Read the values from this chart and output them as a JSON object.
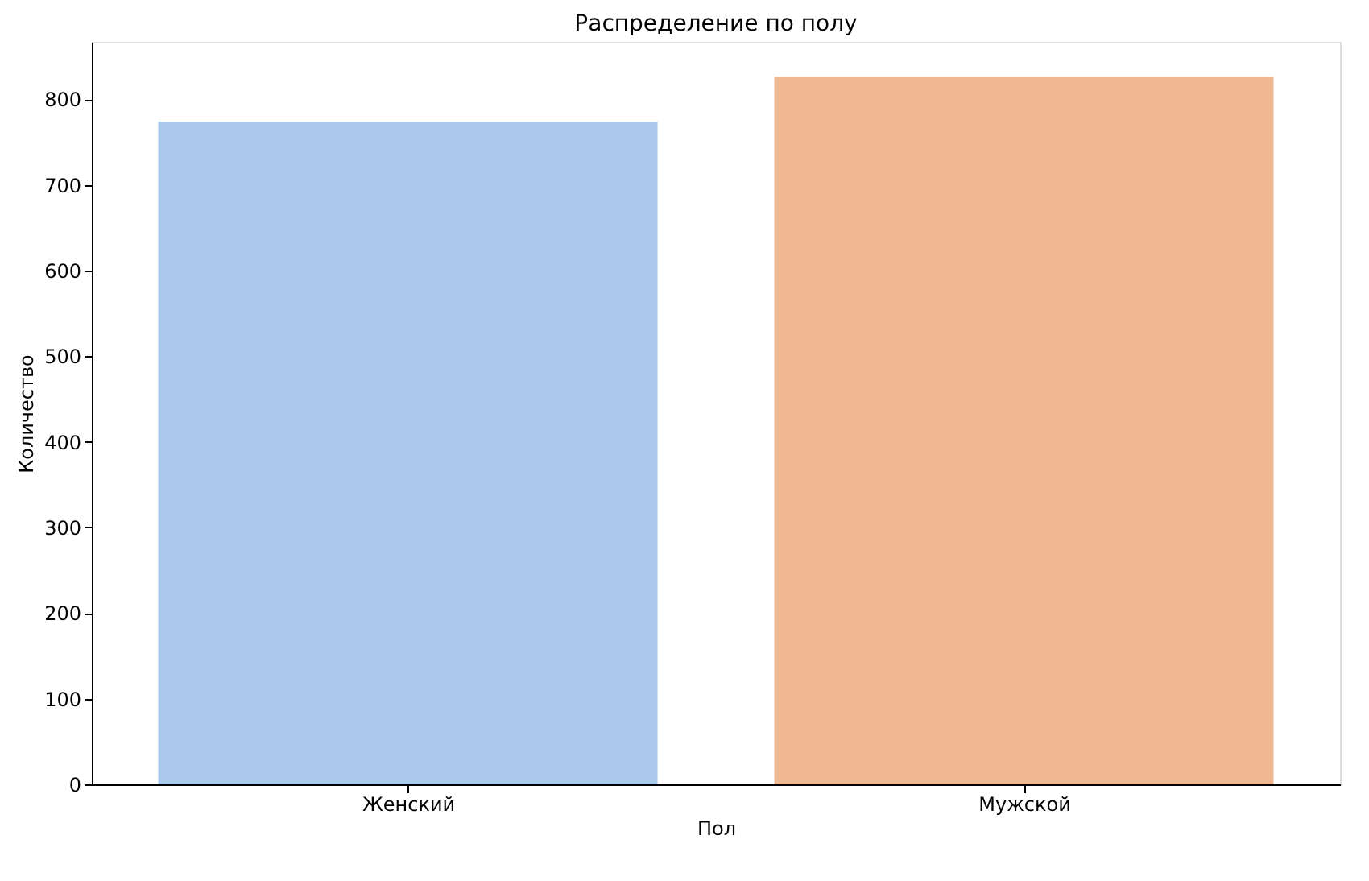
{
  "chart_data": {
    "type": "bar",
    "title": "Распределение по полу",
    "xlabel": "Пол",
    "ylabel": "Количество",
    "categories": [
      "Женский",
      "Мужской"
    ],
    "values": [
      774,
      826
    ],
    "colors": [
      "#abc9ec",
      "#f0b892"
    ],
    "ylim": [
      0,
      867
    ],
    "yticks": [
      0,
      100,
      200,
      300,
      400,
      500,
      600,
      700,
      800
    ],
    "grid": false,
    "legend": false
  }
}
